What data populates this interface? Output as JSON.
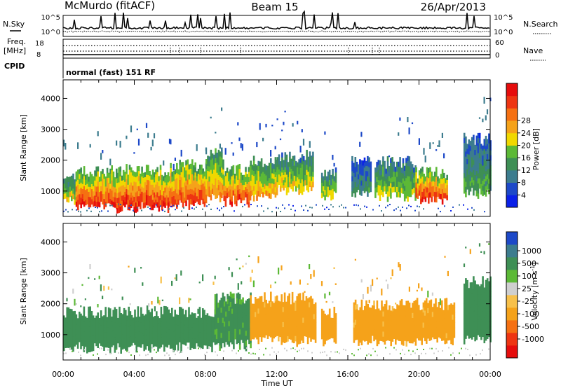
{
  "header": {
    "station": "McMurdo (fitACF)",
    "beam": "Beam 15",
    "date": "26/Apr/2013",
    "mode": "normal (fast) 151 RF"
  },
  "labels": {
    "nsky": "N.Sky",
    "nsearch": "N.Search",
    "freq": "Freq.",
    "mhz": "[MHz]",
    "nave": "Nave",
    "cpid": "CPID",
    "nsky_ticks": [
      "10^5",
      "10^0"
    ],
    "nsearch_ticks": [
      "10^5",
      "10^0"
    ],
    "freq_ticks": [
      "18",
      "8"
    ],
    "nave_ticks": [
      "60",
      "0"
    ]
  },
  "colors": {
    "power": [
      "#0a20e8",
      "#1d49c8",
      "#3c7c8e",
      "#3e8f55",
      "#5cb936",
      "#f0d800",
      "#f5a21a",
      "#f57012",
      "#ee3512",
      "#e60c0c"
    ],
    "velocity": [
      "#e60c0c",
      "#ee3512",
      "#f57012",
      "#f5a21a",
      "#f7c04a",
      "#cfcfcf",
      "#5cb936",
      "#3e8f55",
      "#3c7c8e",
      "#1d49c8"
    ]
  },
  "chart_data": [
    {
      "type": "heatmap",
      "name": "power",
      "xlabel": "Time UT",
      "ylabel": "Slant Range [km]",
      "x_ticks": [
        "00:00",
        "04:00",
        "08:00",
        "12:00",
        "16:00",
        "20:00",
        "00:00"
      ],
      "y_ticks": [
        1000,
        2000,
        3000,
        4000
      ],
      "xlim_hours": [
        0,
        24
      ],
      "ylim_km": [
        180,
        4600
      ],
      "colorbar_label": "Power [dB]",
      "colorbar_ticks": [
        4,
        8,
        12,
        16,
        20,
        24,
        28
      ],
      "colorbar_range": [
        0,
        30
      ],
      "echo_bands": [
        {
          "t0": 0.0,
          "t1": 0.7,
          "lo": 800,
          "hi": 1400,
          "level": 18
        },
        {
          "t0": 0.7,
          "t1": 3.0,
          "lo": 600,
          "hi": 1550,
          "level": 27
        },
        {
          "t0": 3.0,
          "t1": 6.0,
          "lo": 550,
          "hi": 1600,
          "level": 28
        },
        {
          "t0": 6.0,
          "t1": 8.0,
          "lo": 650,
          "hi": 1750,
          "level": 27
        },
        {
          "t0": 8.0,
          "t1": 9.0,
          "lo": 900,
          "hi": 2150,
          "level": 22
        },
        {
          "t0": 9.0,
          "t1": 10.5,
          "lo": 750,
          "hi": 1600,
          "level": 26
        },
        {
          "t0": 10.5,
          "t1": 12.0,
          "lo": 900,
          "hi": 1850,
          "level": 21
        },
        {
          "t0": 12.0,
          "t1": 14.0,
          "lo": 1100,
          "hi": 2050,
          "level": 18
        },
        {
          "t0": 14.5,
          "t1": 15.3,
          "lo": 900,
          "hi": 1600,
          "level": 17
        },
        {
          "t0": 16.2,
          "t1": 17.3,
          "lo": 1000,
          "hi": 1900,
          "level": 10
        },
        {
          "t0": 17.5,
          "t1": 19.8,
          "lo": 900,
          "hi": 1850,
          "level": 16
        },
        {
          "t0": 19.8,
          "t1": 21.6,
          "lo": 800,
          "hi": 1500,
          "level": 27
        },
        {
          "t0": 22.5,
          "t1": 24.0,
          "lo": 1000,
          "hi": 2600,
          "level": 12
        }
      ]
    },
    {
      "type": "heatmap",
      "name": "velocity",
      "xlabel": "Time UT",
      "ylabel": "Slant Range [km]",
      "x_ticks": [
        "00:00",
        "04:00",
        "08:00",
        "12:00",
        "16:00",
        "20:00",
        "00:00"
      ],
      "y_ticks": [
        1000,
        2000,
        3000,
        4000
      ],
      "xlim_hours": [
        0,
        24
      ],
      "ylim_km": [
        180,
        4600
      ],
      "colorbar_label": "Velocity [m s-1]",
      "colorbar_ticks": [
        "1000",
        "500",
        "100",
        "25",
        "-25",
        "-100",
        "-500",
        "-1000"
      ],
      "echo_bands": [
        {
          "t0": 0.0,
          "t1": 8.5,
          "lo": 650,
          "hi": 1650,
          "v": 250
        },
        {
          "t0": 8.5,
          "t1": 10.5,
          "lo": 750,
          "hi": 2100,
          "v": 150
        },
        {
          "t0": 10.5,
          "t1": 14.2,
          "lo": 900,
          "hi": 2100,
          "v": -180
        },
        {
          "t0": 14.5,
          "t1": 15.3,
          "lo": 900,
          "hi": 1650,
          "v": -200
        },
        {
          "t0": 16.3,
          "t1": 22.0,
          "lo": 850,
          "hi": 1900,
          "v": -180
        },
        {
          "t0": 22.5,
          "t1": 24.0,
          "lo": 950,
          "hi": 2600,
          "v": 300
        }
      ]
    }
  ]
}
